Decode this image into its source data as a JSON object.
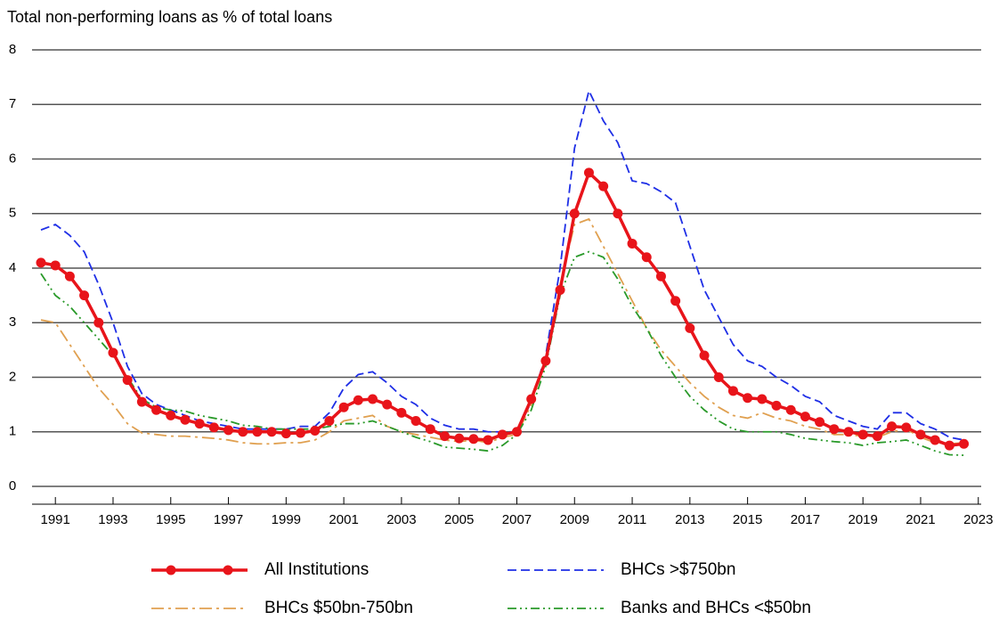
{
  "chart_data": {
    "type": "line",
    "title": "Total non-performing loans as % of total loans",
    "x": [
      1990.5,
      1991,
      1991.5,
      1992,
      1992.5,
      1993,
      1993.5,
      1994,
      1994.5,
      1995,
      1995.5,
      1996,
      1996.5,
      1997,
      1997.5,
      1998,
      1998.5,
      1999,
      1999.5,
      2000,
      2000.5,
      2001,
      2001.5,
      2002,
      2002.5,
      2003,
      2003.5,
      2004,
      2004.5,
      2005,
      2005.5,
      2006,
      2006.5,
      2007,
      2007.5,
      2008,
      2008.5,
      2009,
      2009.5,
      2010,
      2010.5,
      2011,
      2011.5,
      2012,
      2012.5,
      2013,
      2013.5,
      2014,
      2014.5,
      2015,
      2015.5,
      2016,
      2016.5,
      2017,
      2017.5,
      2018,
      2018.5,
      2019,
      2019.5,
      2020,
      2020.5,
      2021,
      2021.5,
      2022,
      2022.5
    ],
    "series": [
      {
        "name": "All Institutions",
        "color": "#e8141a",
        "style": "solid-markers",
        "values": [
          4.1,
          4.05,
          3.85,
          3.5,
          3.0,
          2.45,
          1.95,
          1.55,
          1.4,
          1.3,
          1.22,
          1.15,
          1.08,
          1.03,
          1.0,
          1.0,
          1.0,
          0.97,
          0.98,
          1.02,
          1.2,
          1.45,
          1.58,
          1.6,
          1.5,
          1.35,
          1.2,
          1.05,
          0.92,
          0.88,
          0.87,
          0.85,
          0.95,
          1.0,
          1.6,
          2.3,
          3.6,
          5.0,
          5.75,
          5.5,
          5.0,
          4.45,
          4.2,
          3.85,
          3.4,
          2.9,
          2.4,
          2.0,
          1.75,
          1.62,
          1.6,
          1.48,
          1.4,
          1.28,
          1.18,
          1.05,
          1.0,
          0.95,
          0.92,
          1.1,
          1.08,
          0.95,
          0.85,
          0.75,
          0.78
        ]
      },
      {
        "name": "BHCs >$750bn",
        "color": "#1f2fe6",
        "style": "dashed",
        "values": [
          4.7,
          4.8,
          4.6,
          4.3,
          3.7,
          3.0,
          2.2,
          1.7,
          1.5,
          1.4,
          1.3,
          1.2,
          1.15,
          1.1,
          1.05,
          1.05,
          1.05,
          1.05,
          1.1,
          1.1,
          1.35,
          1.8,
          2.05,
          2.1,
          1.9,
          1.65,
          1.5,
          1.25,
          1.12,
          1.05,
          1.05,
          1.0,
          1.0,
          1.0,
          1.55,
          2.4,
          4.0,
          6.2,
          7.25,
          6.7,
          6.3,
          5.6,
          5.55,
          5.4,
          5.2,
          4.4,
          3.6,
          3.1,
          2.6,
          2.3,
          2.2,
          2.0,
          1.85,
          1.65,
          1.55,
          1.3,
          1.2,
          1.1,
          1.05,
          1.35,
          1.35,
          1.15,
          1.05,
          0.9,
          0.85
        ]
      },
      {
        "name": "BHCs $50bn-750bn",
        "color": "#e0a050",
        "style": "dash-dot",
        "values": [
          3.05,
          3.0,
          2.6,
          2.2,
          1.8,
          1.5,
          1.15,
          0.98,
          0.95,
          0.92,
          0.92,
          0.9,
          0.88,
          0.85,
          0.8,
          0.78,
          0.78,
          0.8,
          0.8,
          0.85,
          1.0,
          1.2,
          1.25,
          1.3,
          1.1,
          1.0,
          0.95,
          0.9,
          0.85,
          0.82,
          0.85,
          0.8,
          0.9,
          0.95,
          1.5,
          2.3,
          3.7,
          4.8,
          4.9,
          4.4,
          3.9,
          3.4,
          2.9,
          2.5,
          2.2,
          1.9,
          1.65,
          1.45,
          1.3,
          1.25,
          1.35,
          1.25,
          1.2,
          1.1,
          1.05,
          0.95,
          0.95,
          0.92,
          0.9,
          1.0,
          1.05,
          0.9,
          0.8,
          0.78,
          0.8
        ]
      },
      {
        "name": "Banks and BHCs <$50bn",
        "color": "#2a9a2a",
        "style": "dash-dot-dot",
        "values": [
          3.9,
          3.5,
          3.3,
          3.0,
          2.7,
          2.4,
          2.0,
          1.6,
          1.45,
          1.4,
          1.38,
          1.3,
          1.25,
          1.2,
          1.12,
          1.1,
          1.05,
          1.05,
          1.05,
          1.05,
          1.1,
          1.15,
          1.15,
          1.2,
          1.1,
          1.0,
          0.9,
          0.82,
          0.72,
          0.7,
          0.68,
          0.65,
          0.75,
          0.95,
          1.4,
          2.2,
          3.5,
          4.2,
          4.3,
          4.2,
          3.8,
          3.3,
          2.9,
          2.4,
          2.0,
          1.65,
          1.4,
          1.2,
          1.05,
          1.0,
          1.0,
          1.0,
          0.95,
          0.88,
          0.85,
          0.82,
          0.8,
          0.75,
          0.8,
          0.82,
          0.85,
          0.75,
          0.65,
          0.58,
          0.57
        ]
      }
    ],
    "xlim": [
      1990.5,
      2023.1
    ],
    "xticks": [
      1991,
      1993,
      1995,
      1997,
      1999,
      2001,
      2003,
      2005,
      2007,
      2009,
      2011,
      2013,
      2015,
      2017,
      2019,
      2021,
      2023
    ],
    "ylim": [
      0,
      8
    ],
    "yticks": [
      0,
      1,
      2,
      3,
      4,
      5,
      6,
      7,
      8
    ],
    "grid": true,
    "legend": "bottom"
  }
}
